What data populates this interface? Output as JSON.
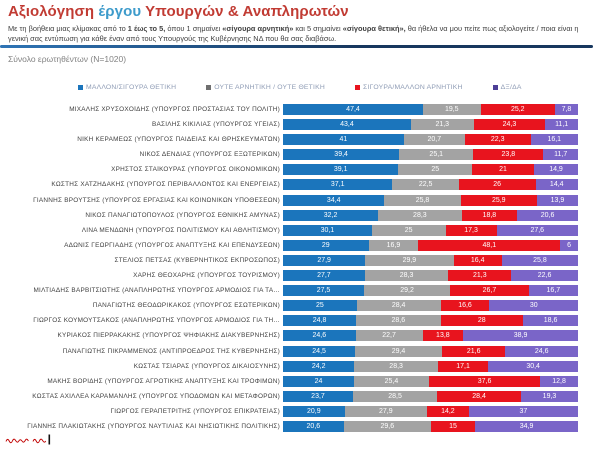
{
  "colors": {
    "title_red": "#c13b33",
    "title_blue": "#3d9bcb",
    "rule_blue": "#17375e",
    "series_positive": "#1b75bc",
    "series_neutral": "#a3a3a3",
    "series_negative": "#e8141e",
    "series_dk": "#7a65c8",
    "logo_red": "#c00000"
  },
  "header": {
    "title_parts": [
      {
        "text": "Αξιολόγηση ",
        "color_role": "red"
      },
      {
        "text": "έργου",
        "color_role": "blue"
      },
      {
        "text": " Υπουργών & Αναπληρωτών",
        "color_role": "red"
      }
    ],
    "subtitle_segments": [
      {
        "text": "Με τη βοήθεια μιας κλίμακας από το ",
        "bold": false
      },
      {
        "text": "1 έως το 5,",
        "bold": true
      },
      {
        "text": " όπου 1 σημαίνει ",
        "bold": false
      },
      {
        "text": "«σίγουρα αρνητική»",
        "bold": true
      },
      {
        "text": " και 5 σημαίνει ",
        "bold": false
      },
      {
        "text": "«σίγουρα θετική»,",
        "bold": true
      },
      {
        "text": "  θα ήθελα να μου πείτε πως αξιολογείτε / ποια είναι η γενική σας εντύπωση για κάθε έναν  από τους Υπουργούς της  Κυβέρνησης ΝΔ που θα σας διαβάσω.",
        "bold": false
      }
    ],
    "sample_note": "Σύνολο ερωτηθέντων (N=1020)"
  },
  "legend": [
    {
      "label": "ΜΑΛΛΟΝ/ΣΙΓΟΥΡΑ ΘΕΤΙΚΗ",
      "color": "#1b75bc"
    },
    {
      "label": "ΟΥΤΕ ΑΡΝΗΤΙΚΗ / ΟΥΤΕ ΘΕΤΙΚΗ",
      "color": "#6f6f6f"
    },
    {
      "label": "ΣΙΓΟΥΡΑ/ΜΑΛΛΟΝ ΑΡΝΗΤΙΚΗ",
      "color": "#e8141e"
    },
    {
      "label": "ΔΞ/ΔΑ",
      "color": "#4d3f97"
    }
  ],
  "chart_data": {
    "type": "bar",
    "orientation": "horizontal",
    "stacked": true,
    "unit": "percent",
    "xlim": [
      0,
      100
    ],
    "grid": false,
    "legend_position": "top",
    "decimal_separator": ",",
    "title": "Αξιολόγηση έργου Υπουργών & Αναπληρωτών",
    "categories": [
      "ΜΙΧΑΛΗΣ ΧΡΥΣΟΧΟΪΔΗΣ (ΥΠΟΥΡΓΟΣ ΠΡΟΣΤΑΣΙΑΣ ΤΟΥ ΠΟΛΙΤΗ)",
      "ΒΑΣΙΛΗΣ ΚΙΚΙΛΙΑΣ (ΥΠΟΥΡΓΟΣ ΥΓΕΙΑΣ)",
      "ΝΙΚΗ ΚΕΡΑΜΕΩΣ (ΥΠΟΥΡΓΟΣ ΠΑΙΔΕΙΑΣ ΚΑΙ ΘΡΗΣΚΕΥΜΑΤΩΝ)",
      "ΝΙΚΟΣ ΔΕΝΔΙΑΣ (ΥΠΟΥΡΓΟΣ ΕΞΩΤΕΡΙΚΩΝ)",
      "ΧΡΗΣΤΟΣ ΣΤΑΪΚΟΥΡΑΣ (ΥΠΟΥΡΓΟΣ ΟΙΚΟΝΟΜΙΚΩΝ)",
      "ΚΩΣΤΗΣ ΧΑΤΖΗΔΑΚΗΣ (ΥΠΟΥΡΓΟΣ ΠΕΡΙΒΑΛΛΟΝΤΟΣ ΚΑΙ ΕΝΕΡΓΕΙΑΣ)",
      "ΓΙΑΝΝΗΣ ΒΡΟΥΤΣΗΣ (ΥΠΟΥΡΓΟΣ ΕΡΓΑΣΙΑΣ ΚΑΙ ΚΟΙΝΩΝΙΚΩΝ ΥΠΟΘΕΣΕΩΝ)",
      "ΝΙΚΟΣ ΠΑΝΑΓΙΩΤΟΠΟΥΛΟΣ (ΥΠΟΥΡΓΟΣ ΕΘΝΙΚΗΣ ΑΜΥΝΑΣ)",
      "ΛΙΝΑ ΜΕΝΔΩΝΗ (ΥΠΟΥΡΓΟΣ ΠΟΛΙΤΙΣΜΟΥ ΚΑΙ ΑΘΛΗΤΙΣΜΟΥ)",
      "ΑΔΩΝΙΣ ΓΕΩΡΓΙΑΔΗΣ (ΥΠΟΥΡΓΟΣ ΑΝΑΠΤΥΞΗΣ ΚΑΙ ΕΠΕΝΔΥΣΕΩΝ)",
      "ΣΤΕΛΙΟΣ ΠΕΤΣΑΣ (ΚΥΒΕΡΝΗΤΙΚΟΣ ΕΚΠΡΟΣΩΠΟΣ)",
      "ΧΑΡΗΣ ΘΕΟΧΑΡΗΣ (ΥΠΟΥΡΓΟΣ ΤΟΥΡΙΣΜΟΥ)",
      "ΜΙΛΤΙΑΔΗΣ ΒΑΡΒΙΤΣΙΩΤΗΣ (ΑΝΑΠΛΗΡΩΤΗΣ ΥΠΟΥΡΓΟΣ ΑΡΜΟΔΙΟΣ ΓΙΑ ΤΑ…",
      "ΠΑΝΑΓΙΩΤΗΣ ΘΕΟΔΩΡΙΚΑΚΟΣ (ΥΠΟΥΡΓΟΣ ΕΣΩΤΕΡΙΚΩΝ)",
      "ΓΙΩΡΓΟΣ ΚΟΥΜΟΥΤΣΑΚΟΣ (ΑΝΑΠΛΗΡΩΤΗΣ ΥΠΟΥΡΓΟΣ ΑΡΜΟΔΙΟΣ ΓΙΑ ΤΗ…",
      "ΚΥΡΙΑΚΟΣ ΠΙΕΡΡΑΚΑΚΗΣ (ΥΠΟΥΡΓΟΣ ΨΗΦΙΑΚΗΣ ΔΙΑΚΥΒΕΡΝΗΣΗΣ)",
      "ΠΑΝΑΓΙΩΤΗΣ ΠΙΚΡΑΜΜΕΝΟΣ (ΑΝΤΙΠΡΟΕΔΡΟΣ ΤΗΣ ΚΥΒΕΡΝΗΣΗΣ)",
      "ΚΩΣΤΑΣ ΤΣΙΑΡΑΣ (ΥΠΟΥΡΓΟΣ ΔΙΚΑΙΟΣΥΝΗΣ)",
      "ΜΑΚΗΣ ΒΟΡΙΔΗΣ (ΥΠΟΥΡΓΟΣ ΑΓΡΟΤΙΚΗΣ ΑΝΑΠΤΥΞΗΣ ΚΑΙ ΤΡΟΦΙΜΩΝ)",
      "ΚΩΣΤΑΣ ΑΧΙΛΛΕΑ ΚΑΡΑΜΑΝΛΗΣ (ΥΠΟΥΡΓΟΣ ΥΠΟΔΟΜΩΝ ΚΑΙ ΜΕΤΑΦΟΡΩΝ)",
      "ΓΙΩΡΓΟΣ ΓΕΡΑΠΕΤΡΙΤΗΣ (ΥΠΟΥΡΓΟΣ ΕΠΙΚΡΑΤΕΙΑΣ)",
      "ΓΙΑΝΝΗΣ ΠΛΑΚΙΩΤΑΚΗΣ (ΥΠΟΥΡΓΟΣ ΝΑΥΤΙΛΙΑΣ ΚΑΙ ΝΗΣΙΩΤΙΚΗΣ ΠΟΛΙΤΙΚΗΣ)"
    ],
    "series": [
      {
        "name": "ΜΑΛΛΟΝ/ΣΙΓΟΥΡΑ ΘΕΤΙΚΗ",
        "color": "#1b75bc",
        "values": [
          47.4,
          43.4,
          41,
          39.4,
          39.1,
          37.1,
          34.4,
          32.2,
          30.1,
          29,
          27.9,
          27.7,
          27.5,
          25,
          24.8,
          24.6,
          24.5,
          24.2,
          24,
          23.7,
          20.9,
          20.6
        ]
      },
      {
        "name": "ΟΥΤΕ ΑΡΝΗΤΙΚΗ / ΟΥΤΕ ΘΕΤΙΚΗ",
        "color": "#a3a3a3",
        "values": [
          19.5,
          21.3,
          20.7,
          25.1,
          25,
          22.5,
          25.8,
          28.3,
          25,
          16.9,
          29.9,
          28.3,
          29.2,
          28.4,
          28.6,
          22.7,
          29.4,
          28.3,
          25.4,
          28.5,
          27.9,
          29.6
        ]
      },
      {
        "name": "ΣΙΓΟΥΡΑ/ΜΑΛΛΟΝ ΑΡΝΗΤΙΚΗ",
        "color": "#e8141e",
        "values": [
          25.2,
          24.3,
          22.3,
          23.8,
          21,
          26,
          25.9,
          18.8,
          17.3,
          48.1,
          16.4,
          21.3,
          26.7,
          16.6,
          28,
          13.8,
          21.6,
          17.1,
          37.6,
          28.4,
          14.2,
          15
        ]
      },
      {
        "name": "ΔΞ/ΔΑ",
        "color": "#7a65c8",
        "values": [
          7.8,
          11.1,
          16.1,
          11.7,
          14.9,
          14.4,
          13.9,
          20.6,
          27.6,
          6,
          25.8,
          22.6,
          16.7,
          30,
          18.6,
          38.9,
          24.6,
          30.4,
          12.8,
          19.3,
          37,
          34.9
        ]
      }
    ]
  },
  "footer": {
    "logo_icon": "red-script-pollster-logo"
  }
}
